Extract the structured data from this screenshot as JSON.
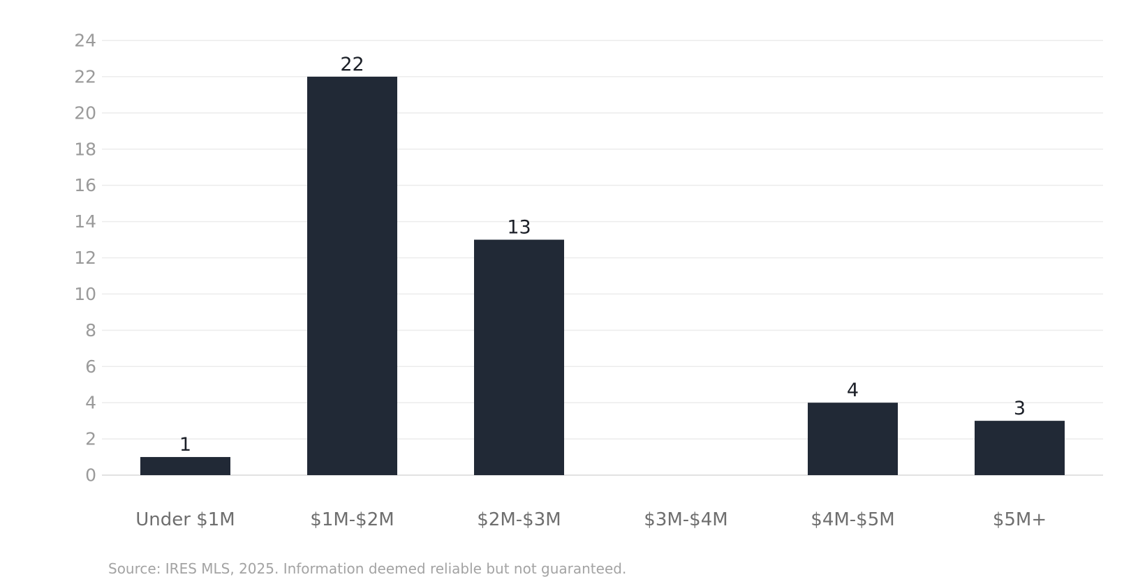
{
  "chart_data": {
    "type": "bar",
    "categories": [
      "Under $1M",
      "$1M-$2M",
      "$2M-$3M",
      "$3M-$4M",
      "$4M-$5M",
      "$5M+"
    ],
    "values": [
      1,
      22,
      13,
      0,
      4,
      3
    ],
    "data_labels": [
      "1",
      "22",
      "13",
      "",
      "4",
      "3"
    ],
    "ylim": [
      0,
      24
    ],
    "yticks": [
      0,
      2,
      4,
      6,
      8,
      10,
      12,
      14,
      16,
      18,
      20,
      22,
      24
    ],
    "grid": true,
    "legend": "none",
    "bar_color": "#212936"
  },
  "footer": {
    "source": "Source: IRES MLS, 2025. Information deemed reliable but not guaranteed."
  }
}
